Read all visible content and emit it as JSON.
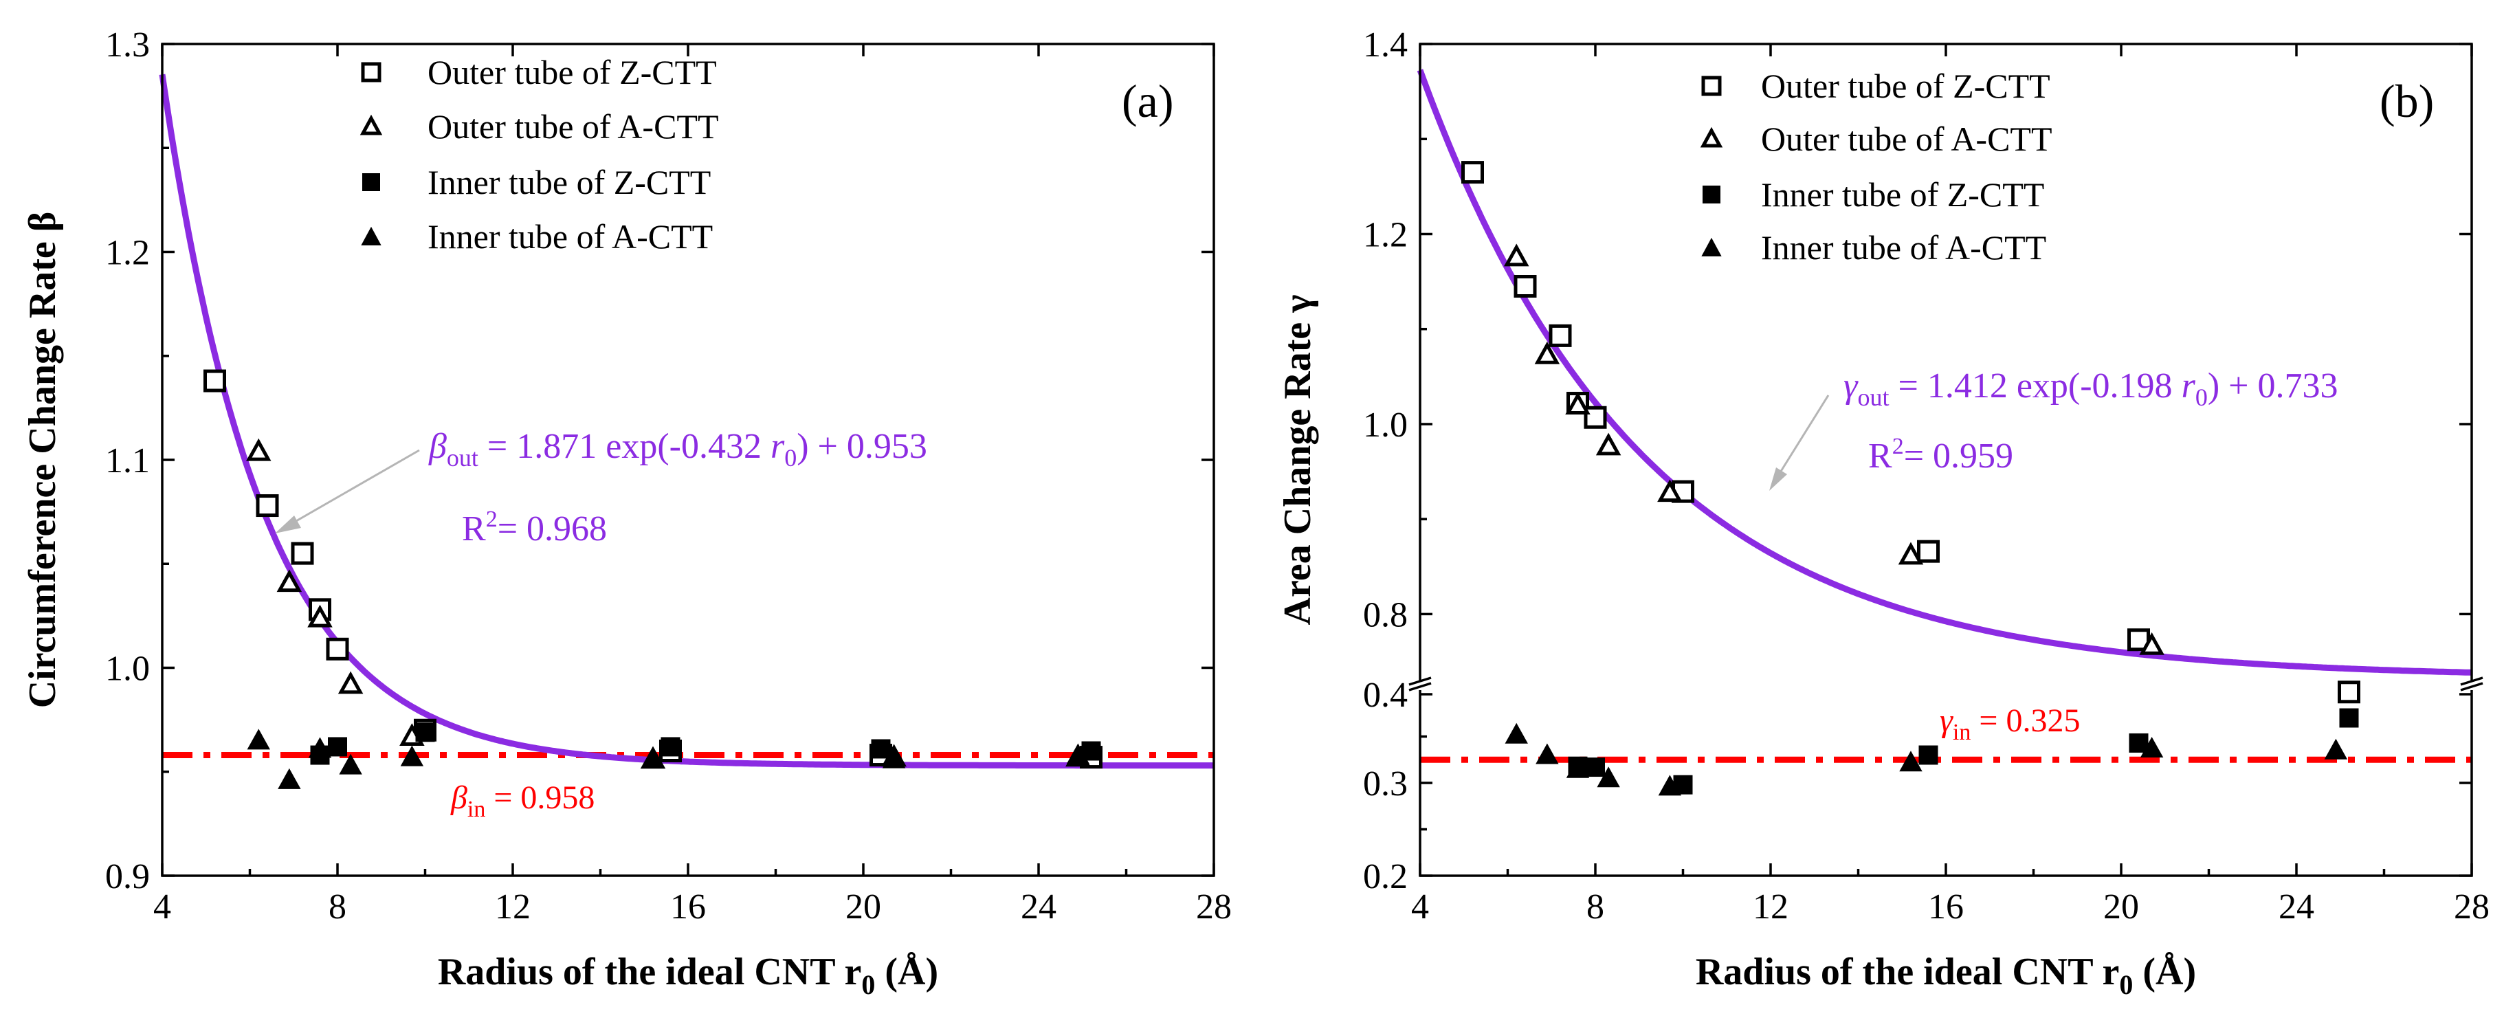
{
  "chart_data": [
    {
      "type": "scatter",
      "panel": "(a)",
      "xlabel": "Radius of the ideal CNT r0 (Å)",
      "xlabel_main": "Radius of the ideal CNT r",
      "xlabel_sub": "0",
      "xlabel_unit": " (Å)",
      "ylabel": "Circumference Change Rate β",
      "xlim": [
        4,
        28
      ],
      "ylim": [
        0.9,
        1.3
      ],
      "xticks": [
        "4",
        "8",
        "12",
        "16",
        "20",
        "24",
        "28"
      ],
      "yticks": [
        "0.9",
        "1.0",
        "1.1",
        "1.2",
        "1.3"
      ],
      "legend": [
        "Outer tube of Z-CTT",
        "Outer tube of A-CTT",
        "Inner tube of Z-CTT",
        "Inner tube of A-CTT"
      ],
      "series": [
        {
          "name": "Outer tube of Z-CTT",
          "marker": "open-square",
          "x": [
            5.2,
            6.4,
            7.2,
            7.6,
            8.0,
            10.0,
            15.6,
            20.4,
            25.2
          ],
          "y": [
            1.138,
            1.078,
            1.055,
            1.028,
            1.009,
            0.97,
            0.96,
            0.958,
            0.957
          ]
        },
        {
          "name": "Outer tube of A-CTT",
          "marker": "open-triangle",
          "x": [
            6.2,
            6.9,
            7.6,
            8.3,
            9.7,
            15.2,
            20.7,
            24.9
          ],
          "y": [
            1.104,
            1.041,
            1.024,
            0.992,
            0.967,
            0.956,
            0.957,
            0.957
          ]
        },
        {
          "name": "Inner tube of Z-CTT",
          "marker": "filled-square",
          "x": [
            7.6,
            8.0,
            10.0,
            15.6,
            20.4,
            25.2
          ],
          "y": [
            0.958,
            0.962,
            0.969,
            0.962,
            0.961,
            0.96
          ]
        },
        {
          "name": "Inner tube of A-CTT",
          "marker": "filled-triangle",
          "x": [
            6.2,
            6.9,
            7.6,
            8.3,
            9.7,
            15.2,
            20.7,
            24.9
          ],
          "y": [
            0.965,
            0.946,
            0.961,
            0.953,
            0.957,
            0.956,
            0.956,
            0.958
          ]
        }
      ],
      "fit": {
        "a": 1.871,
        "b": 0.432,
        "c": 0.953,
        "x_start": 4.0,
        "x_end": 28.0,
        "color": "#8b2be2"
      },
      "constant_line": {
        "y": 0.958,
        "color": "#ff0000"
      },
      "annotations": {
        "fit_sym": "β",
        "fit_sub": "out",
        "fit_rest": " = 1.871 exp(-0.432 ",
        "fit_r": "r",
        "fit_r_sub": "0",
        "fit_end": ") + 0.953",
        "r2_label": "R",
        "r2_exp": "2",
        "r2_val": "= 0.968",
        "const_sym": "β",
        "const_sub": "in",
        "const_val": " = 0.958"
      }
    },
    {
      "type": "scatter",
      "panel": "(b)",
      "xlabel": "Radius of the ideal CNT r0 (Å)",
      "xlabel_main": "Radius of the ideal CNT r",
      "xlabel_sub": "0",
      "xlabel_unit": " (Å)",
      "ylabel": "Area Change Rate γ",
      "xlim": [
        4,
        28
      ],
      "y_axis_break": "between 0.4 and ~0.72",
      "ylim_upper": [
        0.72,
        1.4
      ],
      "ylim_lower": [
        0.2,
        0.4
      ],
      "xticks": [
        "4",
        "8",
        "12",
        "16",
        "20",
        "24",
        "28"
      ],
      "yticks": [
        "0.2",
        "0.3",
        "0.4",
        "0.8",
        "1.0",
        "1.2",
        "1.4"
      ],
      "legend": [
        "Outer tube of Z-CTT",
        "Outer tube of A-CTT",
        "Inner tube of Z-CTT",
        "Inner tube of A-CTT"
      ],
      "series": [
        {
          "name": "Outer tube of Z-CTT",
          "marker": "open-square",
          "x": [
            5.2,
            6.4,
            7.2,
            7.6,
            8.0,
            10.0,
            15.6,
            20.4,
            25.2
          ],
          "y": [
            1.265,
            1.145,
            1.093,
            1.022,
            1.007,
            0.929,
            0.866,
            0.773,
            0.718
          ]
        },
        {
          "name": "Outer tube of A-CTT",
          "marker": "open-triangle",
          "x": [
            6.2,
            6.9,
            7.6,
            8.3,
            9.7,
            15.2,
            20.7
          ],
          "y": [
            1.176,
            1.073,
            1.02,
            0.977,
            0.928,
            0.862,
            0.767
          ]
        },
        {
          "name": "Inner tube of Z-CTT",
          "marker": "filled-square",
          "x": [
            7.6,
            8.0,
            10.0,
            15.6,
            20.4,
            25.2
          ],
          "y": [
            0.318,
            0.317,
            0.298,
            0.33,
            0.343,
            0.37
          ]
        },
        {
          "name": "Inner tube of A-CTT",
          "marker": "filled-triangle",
          "x": [
            6.2,
            6.9,
            7.6,
            8.3,
            9.7,
            15.2,
            20.7,
            24.9
          ],
          "y": [
            0.352,
            0.33,
            0.315,
            0.305,
            0.296,
            0.322,
            0.337,
            0.335
          ]
        }
      ],
      "fit": {
        "a": 1.412,
        "b": 0.198,
        "c": 0.733,
        "x_start": 4.0,
        "x_end": 28.0,
        "color": "#8b2be2"
      },
      "constant_line": {
        "y": 0.325,
        "color": "#ff0000"
      },
      "annotations": {
        "fit_sym": "γ",
        "fit_sub": "out",
        "fit_rest": " = 1.412 exp(-0.198 ",
        "fit_r": "r",
        "fit_r_sub": "0",
        "fit_end": ") + 0.733",
        "r2_label": "R",
        "r2_exp": "2",
        "r2_val": "= 0.959",
        "const_sym": "γ",
        "const_sub": "in",
        "const_val": " = 0.325"
      }
    }
  ]
}
